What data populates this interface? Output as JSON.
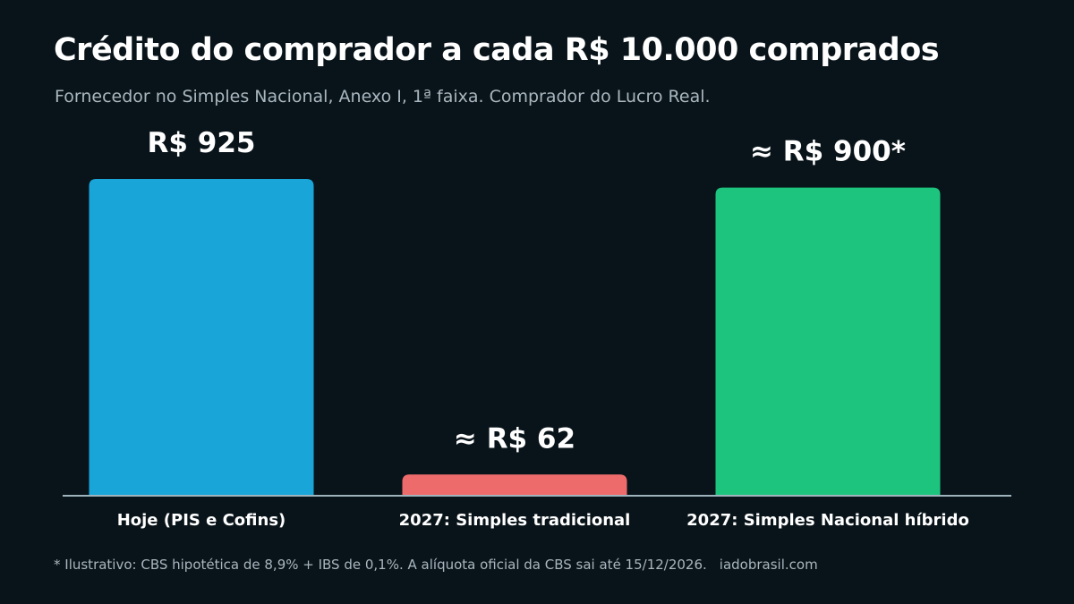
{
  "title": "Crédito do comprador a cada R$ 10.000 comprados",
  "subtitle": "Fornecedor no Simples Nacional, Anexo I, 1ª faixa. Comprador do Lucro Real.",
  "footnote": "* Ilustrativo: CBS hipotética de 8,9% + IBS de 0,1%. A alíquota oficial da CBS sai até 15/12/2026.",
  "site": "iadobrasil.com",
  "chart_data": {
    "type": "bar",
    "categories": [
      "Hoje (PIS e Cofins)",
      "2027: Simples tradicional",
      "2027: Simples Nacional híbrido"
    ],
    "values": [
      925,
      62,
      900
    ],
    "data_labels": [
      "R$ 925",
      "≈ R$ 62",
      "≈ R$ 900*"
    ],
    "colors": [
      "#1aa5d9",
      "#ee6b6b",
      "#1dc47e"
    ],
    "axis_color": "#9fb3bd",
    "ylim": [
      0,
      925
    ]
  }
}
